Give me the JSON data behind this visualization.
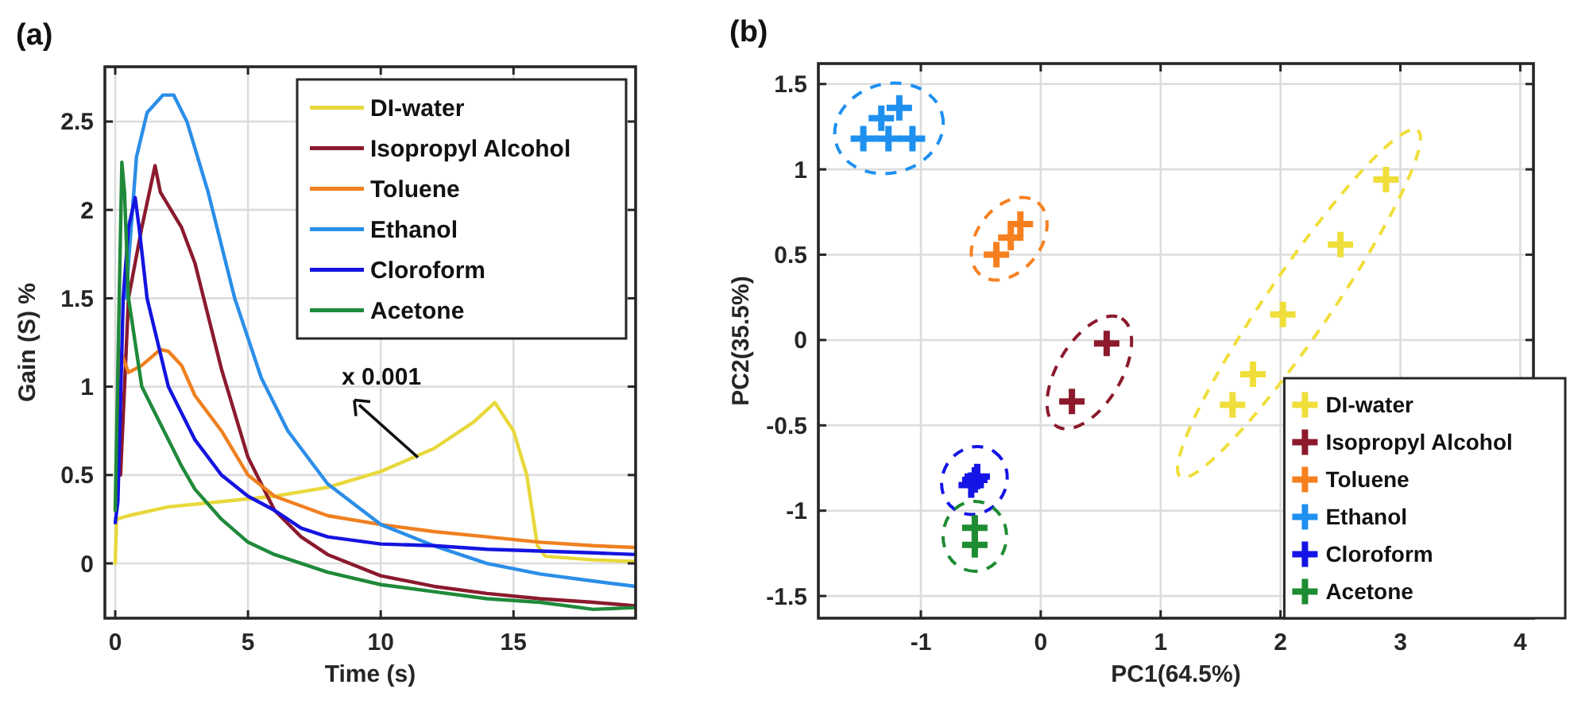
{
  "chart_data": [
    {
      "type": "line",
      "title": "(a)",
      "xlabel": "Time (s)",
      "ylabel": "Gain (S) %",
      "xlim": [
        -0.39,
        19.6
      ],
      "ylim": [
        -0.31,
        2.81
      ],
      "xticks": [
        0,
        5,
        10,
        15
      ],
      "yticks": [
        0,
        0.5,
        1,
        1.5,
        2,
        2.5
      ],
      "grid": true,
      "legend": "top right",
      "annotations": [
        {
          "text": "x 0.001",
          "x": 11.4,
          "y": 0.6
        }
      ],
      "series": [
        {
          "name": "DI-water",
          "color": "#e8d83c",
          "x": [
            0,
            0.05,
            0.5,
            2,
            4,
            6,
            8,
            10,
            12,
            13.5,
            14.3,
            15,
            15.5,
            15.9,
            16.2,
            18,
            19.6
          ],
          "values": [
            0,
            0.25,
            0.27,
            0.32,
            0.35,
            0.38,
            0.43,
            0.52,
            0.65,
            0.8,
            0.91,
            0.75,
            0.5,
            0.1,
            0.04,
            0.02,
            0.01
          ]
        },
        {
          "name": "Isopropyl Alcohol",
          "color": "#8b1a2e",
          "x": [
            0.2,
            0.5,
            1,
            1.5,
            1.7,
            2.5,
            3,
            4,
            5,
            6,
            7,
            8,
            10,
            12,
            14,
            16,
            18,
            19.6
          ],
          "values": [
            0.5,
            1.5,
            1.9,
            2.25,
            2.1,
            1.9,
            1.7,
            1.1,
            0.6,
            0.3,
            0.15,
            0.05,
            -0.07,
            -0.13,
            -0.17,
            -0.2,
            -0.22,
            -0.24
          ]
        },
        {
          "name": "Toluene",
          "color": "#f08020",
          "x": [
            0,
            0.2,
            0.5,
            1,
            1.7,
            2,
            2.5,
            3,
            4,
            5,
            6,
            8,
            10,
            12,
            14,
            16,
            18,
            19.6
          ],
          "values": [
            0.3,
            1.2,
            1.08,
            1.12,
            1.21,
            1.2,
            1.12,
            0.95,
            0.75,
            0.5,
            0.38,
            0.27,
            0.22,
            0.18,
            0.15,
            0.12,
            0.1,
            0.09
          ]
        },
        {
          "name": "Ethanol",
          "color": "#2b8ee8",
          "x": [
            0.4,
            0.8,
            1.2,
            1.8,
            2.2,
            2.7,
            3.5,
            4.5,
            5.5,
            6.5,
            8,
            10,
            12,
            14,
            16,
            18,
            19.6
          ],
          "values": [
            1.5,
            2.3,
            2.55,
            2.65,
            2.65,
            2.5,
            2.1,
            1.5,
            1.05,
            0.75,
            0.45,
            0.22,
            0.1,
            0,
            -0.06,
            -0.1,
            -0.13
          ]
        },
        {
          "name": "Cloroform",
          "color": "#1414e0",
          "x": [
            0,
            0.1,
            0.3,
            0.5,
            0.75,
            0.9,
            1.2,
            2,
            3,
            4,
            5,
            6,
            7,
            8,
            10,
            12,
            14,
            16,
            18,
            19.6
          ],
          "values": [
            0.23,
            0.35,
            1.5,
            1.9,
            2.07,
            1.9,
            1.5,
            1,
            0.7,
            0.5,
            0.38,
            0.3,
            0.2,
            0.15,
            0.11,
            0.1,
            0.08,
            0.07,
            0.06,
            0.05
          ]
        },
        {
          "name": "Acetone",
          "color": "#1f8a3a",
          "x": [
            0,
            0.15,
            0.25,
            0.35,
            0.5,
            1,
            2,
            2.5,
            3,
            4,
            5,
            6,
            8,
            10,
            12,
            14,
            16,
            18,
            19.6
          ],
          "values": [
            0.3,
            1.5,
            2.27,
            2.1,
            1.5,
            1,
            0.7,
            0.55,
            0.42,
            0.25,
            0.12,
            0.05,
            -0.05,
            -0.12,
            -0.16,
            -0.2,
            -0.22,
            -0.26,
            -0.25
          ]
        }
      ]
    },
    {
      "type": "scatter",
      "title": "(b)",
      "xlabel": "PC1(64.5%)",
      "ylabel": "PC2(35.5%)",
      "xlim": [
        -1.855,
        4.11
      ],
      "ylim": [
        -1.63,
        1.62
      ],
      "xticks": [
        -1,
        0,
        1,
        2,
        3,
        4
      ],
      "yticks": [
        -1.5,
        -1,
        -0.5,
        0,
        0.5,
        1,
        1.5
      ],
      "grid": true,
      "legend": "bottom right",
      "marker": "cross",
      "series": [
        {
          "name": "DI-water",
          "color": "#f0de3a",
          "x": [
            1.6,
            1.77,
            2.02,
            2.5,
            2.88
          ],
          "values": [
            -0.38,
            -0.2,
            0.15,
            0.56,
            0.94
          ]
        },
        {
          "name": "Isopropyl Alcohol",
          "color": "#8c1a2c",
          "x": [
            0.26,
            0.55
          ],
          "values": [
            -0.36,
            -0.02
          ]
        },
        {
          "name": "Toluene",
          "color": "#f68020",
          "x": [
            -0.37,
            -0.25,
            -0.17
          ],
          "values": [
            0.5,
            0.6,
            0.68
          ]
        },
        {
          "name": "Ethanol",
          "color": "#1e90f0",
          "x": [
            -1.48,
            -1.33,
            -1.18,
            -1.07,
            -1.27
          ],
          "values": [
            1.18,
            1.3,
            1.36,
            1.18,
            1.18
          ]
        },
        {
          "name": "Cloroform",
          "color": "#1414e6",
          "x": [
            -0.55,
            -0.58,
            -0.53
          ],
          "values": [
            -0.82,
            -0.85,
            -0.8
          ]
        },
        {
          "name": "Acetone",
          "color": "#1e8c32",
          "x": [
            -0.55,
            -0.55
          ],
          "values": [
            -1.1,
            -1.2
          ]
        }
      ]
    }
  ]
}
